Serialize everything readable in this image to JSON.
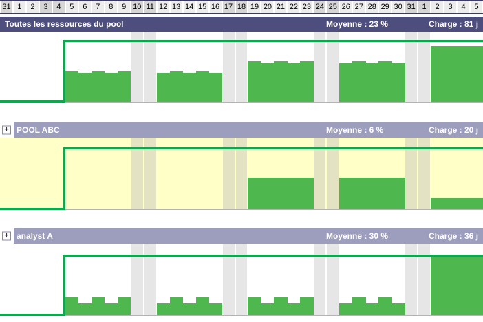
{
  "colors": {
    "header_dark": "#4e4e7e",
    "header_light": "#9d9dbd",
    "day_cell": "#ececec",
    "day_cell_weekend": "#d5d5d5",
    "timescale_border": "#3a3a66",
    "bar_green": "#4eb74e",
    "capacity_green": "#0fa64f",
    "chart_border": "#b3b3b3"
  },
  "calendar": {
    "cells": [
      {
        "label": "31",
        "weekend": true
      },
      {
        "label": "1",
        "weekend": false
      },
      {
        "label": "2",
        "weekend": false
      },
      {
        "label": "3",
        "weekend": true
      },
      {
        "label": "4",
        "weekend": true
      },
      {
        "label": "5",
        "weekend": false
      },
      {
        "label": "6",
        "weekend": false
      },
      {
        "label": "7",
        "weekend": false
      },
      {
        "label": "8",
        "weekend": false
      },
      {
        "label": "9",
        "weekend": false
      },
      {
        "label": "10",
        "weekend": true
      },
      {
        "label": "11",
        "weekend": true
      },
      {
        "label": "12",
        "weekend": false
      },
      {
        "label": "13",
        "weekend": false
      },
      {
        "label": "14",
        "weekend": false
      },
      {
        "label": "15",
        "weekend": false
      },
      {
        "label": "16",
        "weekend": false
      },
      {
        "label": "17",
        "weekend": true
      },
      {
        "label": "18",
        "weekend": true
      },
      {
        "label": "19",
        "weekend": false
      },
      {
        "label": "20",
        "weekend": false
      },
      {
        "label": "21",
        "weekend": false
      },
      {
        "label": "22",
        "weekend": false
      },
      {
        "label": "23",
        "weekend": false
      },
      {
        "label": "24",
        "weekend": true
      },
      {
        "label": "25",
        "weekend": true
      },
      {
        "label": "26",
        "weekend": false
      },
      {
        "label": "27",
        "weekend": false
      },
      {
        "label": "28",
        "weekend": false
      },
      {
        "label": "29",
        "weekend": false
      },
      {
        "label": "30",
        "weekend": false
      },
      {
        "label": "31",
        "weekend": true
      },
      {
        "label": "1",
        "weekend": true
      },
      {
        "label": "2",
        "weekend": false
      },
      {
        "label": "3",
        "weekend": false
      },
      {
        "label": "4",
        "weekend": false
      },
      {
        "label": "5",
        "weekend": false
      }
    ]
  },
  "sections": [
    {
      "title": "Toutes les ressources du pool",
      "expandable": false,
      "stats": {
        "moyenne": "Moyenne : 23 %",
        "charge": "Charge : 81 j"
      },
      "chart": {
        "background": "#ffffff",
        "stripe_color": "#e6e6e6",
        "availability_start_cell": 5,
        "bars": [
          {
            "cell": 5,
            "pct": 50
          },
          {
            "cell": 6,
            "pct": 47
          },
          {
            "cell": 7,
            "pct": 50
          },
          {
            "cell": 8,
            "pct": 47
          },
          {
            "cell": 9,
            "pct": 50
          },
          {
            "cell": 12,
            "pct": 47
          },
          {
            "cell": 13,
            "pct": 50
          },
          {
            "cell": 14,
            "pct": 47
          },
          {
            "cell": 15,
            "pct": 50
          },
          {
            "cell": 16,
            "pct": 47
          },
          {
            "cell": 19,
            "pct": 66
          },
          {
            "cell": 20,
            "pct": 62
          },
          {
            "cell": 21,
            "pct": 66
          },
          {
            "cell": 22,
            "pct": 62
          },
          {
            "cell": 23,
            "pct": 66
          },
          {
            "cell": 26,
            "pct": 62
          },
          {
            "cell": 27,
            "pct": 66
          },
          {
            "cell": 28,
            "pct": 62
          },
          {
            "cell": 29,
            "pct": 66
          },
          {
            "cell": 30,
            "pct": 62
          },
          {
            "cell": 33,
            "pct": 90
          },
          {
            "cell": 34,
            "pct": 90
          },
          {
            "cell": 35,
            "pct": 90
          },
          {
            "cell": 36,
            "pct": 90
          }
        ]
      }
    },
    {
      "title": "POOL ABC",
      "expandable": true,
      "stats": {
        "moyenne": "Moyenne : 6 %",
        "charge": "Charge : 20 j"
      },
      "chart": {
        "background": "#ffffc8",
        "stripe_color": "#e3e3c3",
        "availability_start_cell": 5,
        "bars": [
          {
            "cell": 19,
            "pct": 51
          },
          {
            "cell": 20,
            "pct": 51
          },
          {
            "cell": 21,
            "pct": 51
          },
          {
            "cell": 22,
            "pct": 51
          },
          {
            "cell": 23,
            "pct": 51
          },
          {
            "cell": 26,
            "pct": 51
          },
          {
            "cell": 27,
            "pct": 51
          },
          {
            "cell": 28,
            "pct": 51
          },
          {
            "cell": 29,
            "pct": 51
          },
          {
            "cell": 30,
            "pct": 51
          },
          {
            "cell": 33,
            "pct": 18
          },
          {
            "cell": 34,
            "pct": 18
          },
          {
            "cell": 35,
            "pct": 18
          },
          {
            "cell": 36,
            "pct": 18
          }
        ]
      }
    },
    {
      "title": "analyst A",
      "expandable": true,
      "stats": {
        "moyenne": "Moyenne : 30 %",
        "charge": "Charge : 36 j"
      },
      "chart": {
        "background": "#ffffff",
        "stripe_color": "#e6e6e6",
        "availability_start_cell": 5,
        "bars": [
          {
            "cell": 5,
            "pct": 30
          },
          {
            "cell": 6,
            "pct": 19
          },
          {
            "cell": 7,
            "pct": 30
          },
          {
            "cell": 8,
            "pct": 19
          },
          {
            "cell": 9,
            "pct": 30
          },
          {
            "cell": 12,
            "pct": 19
          },
          {
            "cell": 13,
            "pct": 30
          },
          {
            "cell": 14,
            "pct": 19
          },
          {
            "cell": 15,
            "pct": 30
          },
          {
            "cell": 16,
            "pct": 19
          },
          {
            "cell": 19,
            "pct": 30
          },
          {
            "cell": 20,
            "pct": 19
          },
          {
            "cell": 21,
            "pct": 30
          },
          {
            "cell": 22,
            "pct": 19
          },
          {
            "cell": 23,
            "pct": 30
          },
          {
            "cell": 26,
            "pct": 19
          },
          {
            "cell": 27,
            "pct": 30
          },
          {
            "cell": 28,
            "pct": 19
          },
          {
            "cell": 29,
            "pct": 30
          },
          {
            "cell": 30,
            "pct": 19
          },
          {
            "cell": 33,
            "pct": 98
          },
          {
            "cell": 34,
            "pct": 98
          },
          {
            "cell": 35,
            "pct": 98
          },
          {
            "cell": 36,
            "pct": 98
          }
        ]
      }
    }
  ]
}
